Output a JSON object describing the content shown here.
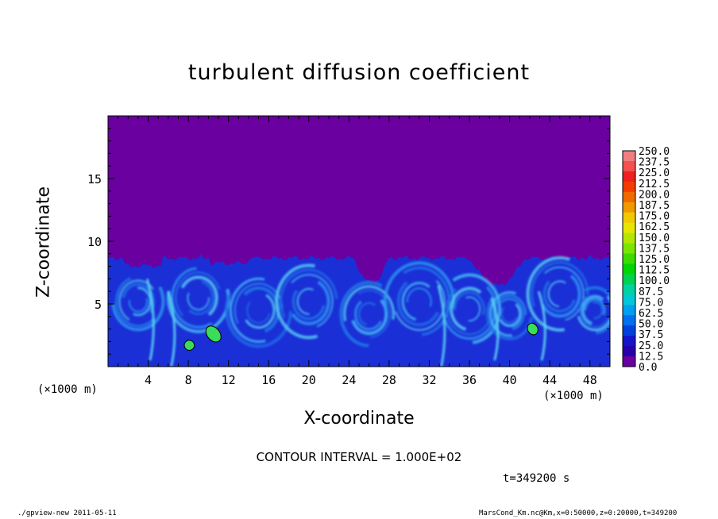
{
  "chart_data": {
    "type": "heatmap",
    "title": "turbulent diffusion coefficient",
    "xlabel": "X-coordinate",
    "ylabel": "Z-coordinate",
    "x_unit": "(×1000 m)",
    "z_unit": "(×1000 m)",
    "xlim": [
      0,
      50
    ],
    "ylim": [
      0,
      20
    ],
    "x_ticks": [
      4,
      8,
      12,
      16,
      20,
      24,
      28,
      32,
      36,
      40,
      44,
      48
    ],
    "y_ticks": [
      5,
      10,
      15
    ],
    "colorbar": {
      "levels": [
        "250.0",
        "237.5",
        "225.0",
        "212.5",
        "200.0",
        "187.5",
        "175.0",
        "162.5",
        "150.0",
        "137.5",
        "125.0",
        "112.5",
        "100.0",
        "87.5",
        "75.0",
        "62.5",
        "50.0",
        "37.5",
        "25.0",
        "12.5",
        "0.0"
      ],
      "colors": [
        "#f08080",
        "#f45050",
        "#ee2020",
        "#f43c00",
        "#f06a00",
        "#f09a00",
        "#f2c800",
        "#e6e600",
        "#b4e600",
        "#7ae600",
        "#3cdc00",
        "#00d600",
        "#00d250",
        "#00d2a0",
        "#00c8d8",
        "#00a0f0",
        "#0070f0",
        "#0040dc",
        "#1414c8",
        "#2800aa",
        "#6a00a0"
      ]
    },
    "background_color": "#6a00a0",
    "turbulent_layer_top_km": 9,
    "contour_interval": "CONTOUR INTERVAL = 1.000E+02",
    "time_label": "t=349200 s"
  },
  "footer": {
    "left": "./gpview-new  2011-05-11",
    "right": "MarsCond_Km.nc@Km,x=0:50000,z=0:20000,t=349200"
  }
}
